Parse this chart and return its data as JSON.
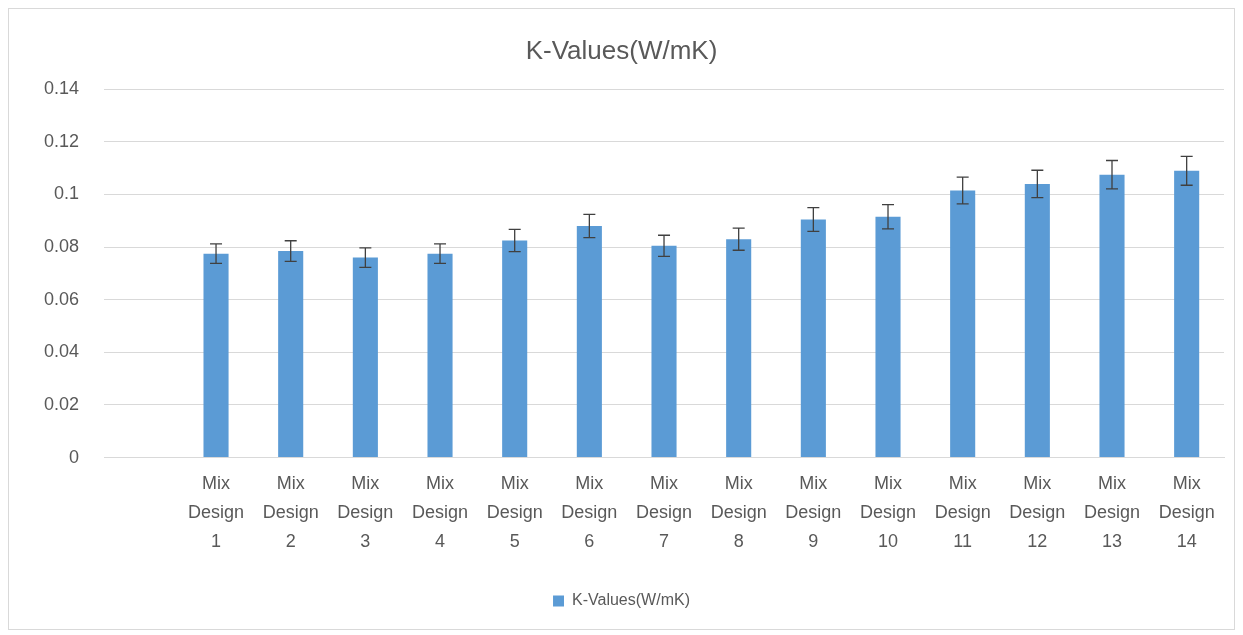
{
  "chart_data": {
    "type": "bar",
    "title": "K-Values(W/mK)",
    "categories": [
      null,
      "Mix Design 1",
      "Mix Design 2",
      "Mix Design 3",
      "Mix Design 4",
      "Mix Design 5",
      "Mix Design 6",
      "Mix Design 7",
      "Mix Design 8",
      "Mix Design 9",
      "Mix Design 10",
      "Mix Design 11",
      "Mix Design 12",
      "Mix Design 13",
      "Mix Design 14"
    ],
    "series": [
      {
        "name": "K-Values(W/mK)",
        "color": "#5b9bd5",
        "values": [
          null,
          0.0775,
          0.0785,
          0.076,
          0.0775,
          0.0825,
          0.088,
          0.0805,
          0.083,
          0.0905,
          0.0915,
          0.1015,
          0.104,
          0.1075,
          0.109
        ],
        "errors": [
          null,
          0.0037,
          0.0039,
          0.0037,
          0.0037,
          0.0042,
          0.0044,
          0.004,
          0.0042,
          0.0045,
          0.0046,
          0.0051,
          0.0052,
          0.0054,
          0.0055
        ]
      }
    ],
    "ylim": [
      0,
      0.14
    ],
    "yticks": [
      0,
      0.02,
      0.04,
      0.06,
      0.08,
      0.1,
      0.12,
      0.14
    ],
    "grid": "y",
    "legend": "bottom"
  }
}
